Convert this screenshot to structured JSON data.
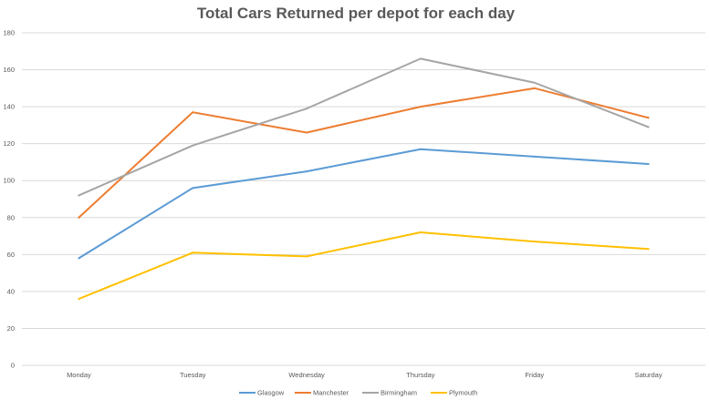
{
  "chart_data": {
    "type": "line",
    "title": "Total Cars Returned per depot for each day",
    "categories": [
      "Monday",
      "Tuesday",
      "Wednesday",
      "Thursday",
      "Friday",
      "Saturday"
    ],
    "ylim": [
      0,
      180
    ],
    "yticks": [
      0,
      20,
      40,
      60,
      80,
      100,
      120,
      140,
      160,
      180
    ],
    "grid": true,
    "legend_position": "bottom",
    "series": [
      {
        "name": "Glasgow",
        "color": "#5B9BD5",
        "values": [
          58,
          96,
          105,
          117,
          113,
          109
        ]
      },
      {
        "name": "Manchester",
        "color": "#ED7D31",
        "values": [
          80,
          137,
          126,
          140,
          150,
          134
        ]
      },
      {
        "name": "Birmingham",
        "color": "#A5A5A5",
        "values": [
          92,
          119,
          139,
          166,
          153,
          129
        ]
      },
      {
        "name": "Plymouth",
        "color": "#FFC000",
        "values": [
          36,
          61,
          59,
          72,
          67,
          63
        ]
      }
    ]
  }
}
